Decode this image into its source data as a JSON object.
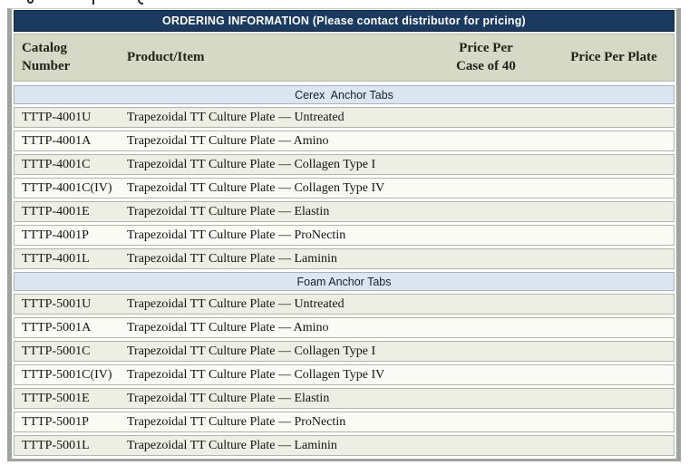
{
  "page": {
    "clipped_top_fragments": [
      "g-descender",
      "p-descender",
      "y-descender"
    ]
  },
  "table": {
    "title": "ORDERING INFORMATION (Please contact distributor for pricing)",
    "columns": {
      "catalog": "Catalog\nNumber",
      "product": "Product/Item",
      "price_case": "Price Per\nCase of 40",
      "price_plate": "Price Per Plate"
    },
    "sections": [
      {
        "name": "Cerex  Anchor Tabs",
        "rows": [
          {
            "catalog": "TTTP-4001U",
            "product": "Trapezoidal TT Culture Plate — Untreated"
          },
          {
            "catalog": "TTTP-4001A",
            "product": "Trapezoidal TT Culture Plate — Amino"
          },
          {
            "catalog": "TTTP-4001C",
            "product": "Trapezoidal TT Culture Plate — Collagen Type I"
          },
          {
            "catalog": "TTTP-4001C(IV)",
            "product": "Trapezoidal TT Culture Plate — Collagen Type IV"
          },
          {
            "catalog": "TTTP-4001E",
            "product": "Trapezoidal TT Culture Plate — Elastin"
          },
          {
            "catalog": "TTTP-4001P",
            "product": "Trapezoidal TT Culture Plate — ProNectin"
          },
          {
            "catalog": "TTTP-4001L",
            "product": "Trapezoidal TT Culture Plate — Laminin"
          }
        ]
      },
      {
        "name": "Foam Anchor Tabs",
        "rows": [
          {
            "catalog": "TTTP-5001U",
            "product": "Trapezoidal TT Culture Plate — Untreated"
          },
          {
            "catalog": "TTTP-5001A",
            "product": "Trapezoidal TT Culture Plate — Amino"
          },
          {
            "catalog": "TTTP-5001C",
            "product": "Trapezoidal TT Culture Plate — Collagen Type I"
          },
          {
            "catalog": "TTTP-5001C(IV)",
            "product": "Trapezoidal TT Culture Plate — Collagen Type IV"
          },
          {
            "catalog": "TTTP-5001E",
            "product": "Trapezoidal TT Culture Plate — Elastin"
          },
          {
            "catalog": "TTTP-5001P",
            "product": "Trapezoidal TT Culture Plate — ProNectin"
          },
          {
            "catalog": "TTTP-5001L",
            "product": "Trapezoidal TT Culture Plate — Laminin"
          }
        ]
      }
    ]
  },
  "colors": {
    "title_bar_bg": "#1b3a5f",
    "title_bar_text": "#ffffff",
    "column_header_bg": "#d6d9c6",
    "section_band_bg": "#dce6f2",
    "row_shaded_bg": "#edefe4",
    "row_plain_bg": "#fbfbf6",
    "outer_border": "#9ea39b"
  }
}
